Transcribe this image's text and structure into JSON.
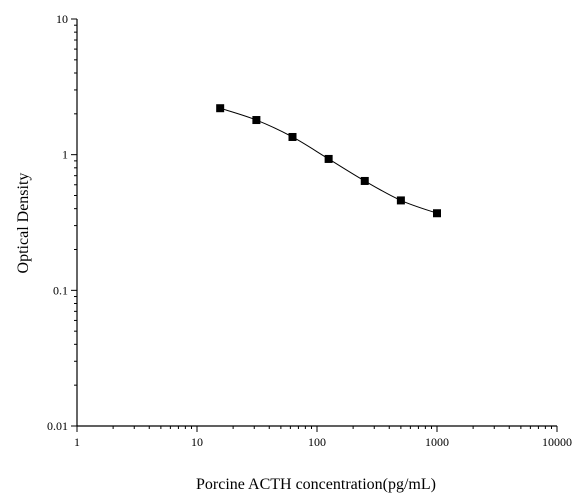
{
  "chart_data": {
    "type": "scatter",
    "title": "",
    "xlabel": "Porcine ACTH concentration(pg/mL)",
    "ylabel": "Optical Density",
    "xscale": "log",
    "yscale": "log",
    "xlim": [
      1,
      10000
    ],
    "ylim": [
      0.01,
      10
    ],
    "x_ticks": [
      {
        "value": 1,
        "label": "1"
      },
      {
        "value": 10,
        "label": "10"
      },
      {
        "value": 100,
        "label": "100"
      },
      {
        "value": 1000,
        "label": "1000"
      },
      {
        "value": 10000,
        "label": "10000"
      }
    ],
    "y_ticks": [
      {
        "value": 0.01,
        "label": "0.01"
      },
      {
        "value": 0.1,
        "label": "0.1"
      },
      {
        "value": 1,
        "label": "1"
      },
      {
        "value": 10,
        "label": "10"
      }
    ],
    "grid": false,
    "legend": "none",
    "series": [
      {
        "x": [
          15.6,
          31.25,
          62.5,
          125,
          250,
          500,
          1000
        ],
        "y": [
          2.2,
          1.8,
          1.35,
          0.93,
          0.64,
          0.46,
          0.37
        ],
        "marker": "square",
        "line": "smooth",
        "color": "#000000"
      }
    ]
  }
}
